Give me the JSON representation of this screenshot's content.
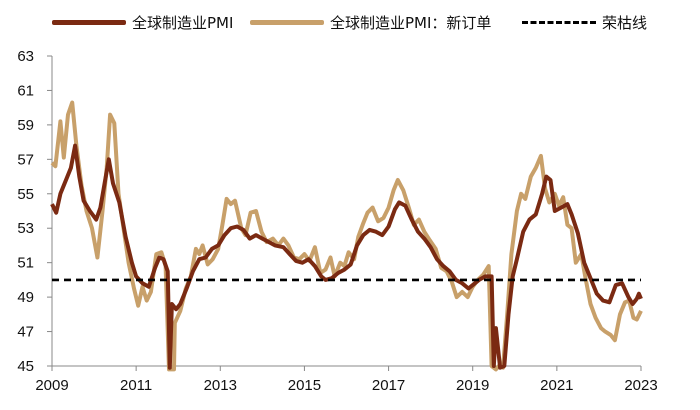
{
  "chart_data": {
    "type": "line",
    "legend_position": "top",
    "grid": false,
    "ylim": [
      45,
      63
    ],
    "xlim": [
      2009,
      2023
    ],
    "yticks": [
      "63",
      "61",
      "59",
      "57",
      "55",
      "53",
      "51",
      "49",
      "47",
      "45"
    ],
    "xticks": [
      "2009",
      "2011",
      "2013",
      "2015",
      "2017",
      "2019",
      "2021",
      "2023"
    ],
    "series": [
      {
        "name": "全球制造业PMI",
        "color": "#7B2A12",
        "dash": "solid",
        "points": [
          [
            2009.0,
            54.4
          ],
          [
            2009.1,
            53.9
          ],
          [
            2009.2,
            55.0
          ],
          [
            2009.35,
            55.9
          ],
          [
            2009.45,
            56.5
          ],
          [
            2009.55,
            57.8
          ],
          [
            2009.65,
            56.0
          ],
          [
            2009.75,
            54.6
          ],
          [
            2009.9,
            54.0
          ],
          [
            2010.05,
            53.5
          ],
          [
            2010.15,
            54.2
          ],
          [
            2010.25,
            55.6
          ],
          [
            2010.35,
            57.0
          ],
          [
            2010.45,
            55.6
          ],
          [
            2010.6,
            54.5
          ],
          [
            2010.75,
            52.5
          ],
          [
            2010.9,
            51.0
          ],
          [
            2011.0,
            50.2
          ],
          [
            2011.15,
            49.8
          ],
          [
            2011.3,
            49.6
          ],
          [
            2011.45,
            50.7
          ],
          [
            2011.55,
            51.3
          ],
          [
            2011.65,
            51.2
          ],
          [
            2011.75,
            50.5
          ],
          [
            2011.8,
            44.9
          ],
          [
            2011.85,
            48.6
          ],
          [
            2011.95,
            48.3
          ],
          [
            2012.05,
            48.6
          ],
          [
            2012.2,
            49.5
          ],
          [
            2012.35,
            50.5
          ],
          [
            2012.5,
            51.2
          ],
          [
            2012.65,
            51.3
          ],
          [
            2012.8,
            51.8
          ],
          [
            2012.95,
            52.0
          ],
          [
            2013.1,
            52.6
          ],
          [
            2013.25,
            53.0
          ],
          [
            2013.4,
            53.1
          ],
          [
            2013.55,
            52.9
          ],
          [
            2013.7,
            52.4
          ],
          [
            2013.85,
            52.6
          ],
          [
            2014.0,
            52.4
          ],
          [
            2014.15,
            52.2
          ],
          [
            2014.3,
            52.0
          ],
          [
            2014.5,
            51.9
          ],
          [
            2014.65,
            51.5
          ],
          [
            2014.8,
            51.1
          ],
          [
            2014.95,
            51.0
          ],
          [
            2015.1,
            51.2
          ],
          [
            2015.25,
            50.8
          ],
          [
            2015.4,
            50.2
          ],
          [
            2015.5,
            50.0
          ],
          [
            2015.65,
            50.1
          ],
          [
            2015.8,
            50.4
          ],
          [
            2015.95,
            50.6
          ],
          [
            2016.1,
            50.9
          ],
          [
            2016.25,
            52.0
          ],
          [
            2016.4,
            52.6
          ],
          [
            2016.55,
            52.9
          ],
          [
            2016.7,
            52.8
          ],
          [
            2016.85,
            52.6
          ],
          [
            2017.0,
            53.1
          ],
          [
            2017.15,
            54.1
          ],
          [
            2017.25,
            54.5
          ],
          [
            2017.4,
            54.3
          ],
          [
            2017.55,
            53.5
          ],
          [
            2017.7,
            52.8
          ],
          [
            2017.85,
            52.4
          ],
          [
            2018.0,
            51.9
          ],
          [
            2018.15,
            51.2
          ],
          [
            2018.3,
            50.8
          ],
          [
            2018.45,
            50.5
          ],
          [
            2018.6,
            50.0
          ],
          [
            2018.75,
            49.8
          ],
          [
            2018.9,
            49.5
          ],
          [
            2019.0,
            49.7
          ],
          [
            2019.15,
            50.0
          ],
          [
            2019.3,
            50.2
          ],
          [
            2019.45,
            50.2
          ],
          [
            2019.5,
            45.0
          ],
          [
            2019.55,
            47.2
          ],
          [
            2019.65,
            44.9
          ],
          [
            2019.75,
            45.0
          ],
          [
            2019.85,
            48.0
          ],
          [
            2019.95,
            50.2
          ],
          [
            2020.05,
            51.2
          ],
          [
            2020.2,
            52.8
          ],
          [
            2020.35,
            53.5
          ],
          [
            2020.5,
            53.8
          ],
          [
            2020.65,
            55.0
          ],
          [
            2020.75,
            56.0
          ],
          [
            2020.85,
            55.8
          ],
          [
            2020.95,
            54.0
          ],
          [
            2021.1,
            54.2
          ],
          [
            2021.25,
            54.4
          ],
          [
            2021.35,
            53.8
          ],
          [
            2021.5,
            52.7
          ],
          [
            2021.65,
            51.0
          ],
          [
            2021.8,
            50.1
          ],
          [
            2021.95,
            49.2
          ],
          [
            2022.1,
            48.8
          ],
          [
            2022.25,
            48.7
          ],
          [
            2022.4,
            49.7
          ],
          [
            2022.55,
            49.8
          ],
          [
            2022.7,
            49.0
          ],
          [
            2022.8,
            48.6
          ],
          [
            2022.9,
            48.9
          ],
          [
            2022.95,
            49.2
          ],
          [
            2023.0,
            48.9
          ]
        ]
      },
      {
        "name": "全球制造业PMI：新订单",
        "color": "#C8A06A",
        "dash": "solid",
        "points": [
          [
            2009.0,
            56.8
          ],
          [
            2009.08,
            56.6
          ],
          [
            2009.2,
            59.2
          ],
          [
            2009.28,
            57.1
          ],
          [
            2009.38,
            59.6
          ],
          [
            2009.48,
            60.3
          ],
          [
            2009.58,
            57.8
          ],
          [
            2009.7,
            55.5
          ],
          [
            2009.82,
            54.0
          ],
          [
            2009.95,
            53.0
          ],
          [
            2010.08,
            51.3
          ],
          [
            2010.2,
            54.0
          ],
          [
            2010.3,
            56.5
          ],
          [
            2010.38,
            59.6
          ],
          [
            2010.48,
            59.1
          ],
          [
            2010.58,
            55.0
          ],
          [
            2010.7,
            53.0
          ],
          [
            2010.82,
            51.0
          ],
          [
            2010.95,
            49.5
          ],
          [
            2011.05,
            48.5
          ],
          [
            2011.15,
            49.6
          ],
          [
            2011.25,
            48.8
          ],
          [
            2011.35,
            49.3
          ],
          [
            2011.48,
            51.5
          ],
          [
            2011.6,
            51.6
          ],
          [
            2011.7,
            50.8
          ],
          [
            2011.78,
            44.8
          ],
          [
            2011.9,
            44.8
          ],
          [
            2011.92,
            47.5
          ],
          [
            2012.05,
            48.2
          ],
          [
            2012.18,
            49.5
          ],
          [
            2012.3,
            50.2
          ],
          [
            2012.42,
            51.8
          ],
          [
            2012.5,
            51.5
          ],
          [
            2012.58,
            52.0
          ],
          [
            2012.7,
            50.9
          ],
          [
            2012.82,
            51.2
          ],
          [
            2012.95,
            51.8
          ],
          [
            2013.05,
            53.2
          ],
          [
            2013.15,
            54.7
          ],
          [
            2013.25,
            54.4
          ],
          [
            2013.35,
            54.6
          ],
          [
            2013.5,
            53.0
          ],
          [
            2013.6,
            52.6
          ],
          [
            2013.72,
            53.9
          ],
          [
            2013.85,
            54.0
          ],
          [
            2013.98,
            52.8
          ],
          [
            2014.1,
            52.2
          ],
          [
            2014.25,
            52.4
          ],
          [
            2014.38,
            52.0
          ],
          [
            2014.5,
            52.4
          ],
          [
            2014.62,
            52.0
          ],
          [
            2014.75,
            51.3
          ],
          [
            2014.88,
            51.2
          ],
          [
            2015.0,
            51.5
          ],
          [
            2015.12,
            51.1
          ],
          [
            2015.25,
            51.9
          ],
          [
            2015.38,
            50.4
          ],
          [
            2015.5,
            50.6
          ],
          [
            2015.62,
            51.3
          ],
          [
            2015.72,
            50.2
          ],
          [
            2015.85,
            51.0
          ],
          [
            2015.95,
            50.8
          ],
          [
            2016.05,
            51.6
          ],
          [
            2016.18,
            51.2
          ],
          [
            2016.28,
            52.5
          ],
          [
            2016.4,
            53.3
          ],
          [
            2016.5,
            53.9
          ],
          [
            2016.62,
            54.2
          ],
          [
            2016.75,
            53.4
          ],
          [
            2016.88,
            53.6
          ],
          [
            2017.0,
            54.2
          ],
          [
            2017.12,
            55.2
          ],
          [
            2017.22,
            55.8
          ],
          [
            2017.35,
            55.2
          ],
          [
            2017.48,
            54.2
          ],
          [
            2017.6,
            53.2
          ],
          [
            2017.72,
            53.5
          ],
          [
            2017.85,
            52.8
          ],
          [
            2017.98,
            52.3
          ],
          [
            2018.12,
            51.8
          ],
          [
            2018.25,
            50.7
          ],
          [
            2018.38,
            50.5
          ],
          [
            2018.5,
            49.9
          ],
          [
            2018.62,
            49.0
          ],
          [
            2018.75,
            49.3
          ],
          [
            2018.88,
            49.0
          ],
          [
            2019.0,
            49.6
          ],
          [
            2019.12,
            50.0
          ],
          [
            2019.25,
            50.3
          ],
          [
            2019.38,
            50.8
          ],
          [
            2019.45,
            45.0
          ],
          [
            2019.55,
            44.8
          ],
          [
            2019.62,
            45.0
          ],
          [
            2019.72,
            44.9
          ],
          [
            2019.82,
            48.0
          ],
          [
            2019.92,
            51.5
          ],
          [
            2020.05,
            54.0
          ],
          [
            2020.15,
            55.0
          ],
          [
            2020.25,
            54.7
          ],
          [
            2020.38,
            56.0
          ],
          [
            2020.5,
            56.5
          ],
          [
            2020.62,
            57.2
          ],
          [
            2020.72,
            55.3
          ],
          [
            2020.82,
            54.5
          ],
          [
            2020.95,
            55.0
          ],
          [
            2021.05,
            54.3
          ],
          [
            2021.15,
            54.8
          ],
          [
            2021.25,
            53.2
          ],
          [
            2021.35,
            53.0
          ],
          [
            2021.45,
            51.0
          ],
          [
            2021.58,
            51.5
          ],
          [
            2021.68,
            50.1
          ],
          [
            2021.8,
            48.6
          ],
          [
            2021.92,
            47.8
          ],
          [
            2022.05,
            47.2
          ],
          [
            2022.15,
            47.0
          ],
          [
            2022.28,
            46.8
          ],
          [
            2022.38,
            46.5
          ],
          [
            2022.5,
            48.0
          ],
          [
            2022.62,
            48.7
          ],
          [
            2022.72,
            48.8
          ],
          [
            2022.82,
            47.8
          ],
          [
            2022.9,
            47.7
          ],
          [
            2023.0,
            48.2
          ]
        ]
      },
      {
        "name": "荣枯线",
        "color": "#000000",
        "dash": "dashed",
        "points": [
          [
            2009.0,
            50.0
          ],
          [
            2023.0,
            50.0
          ]
        ]
      }
    ]
  }
}
